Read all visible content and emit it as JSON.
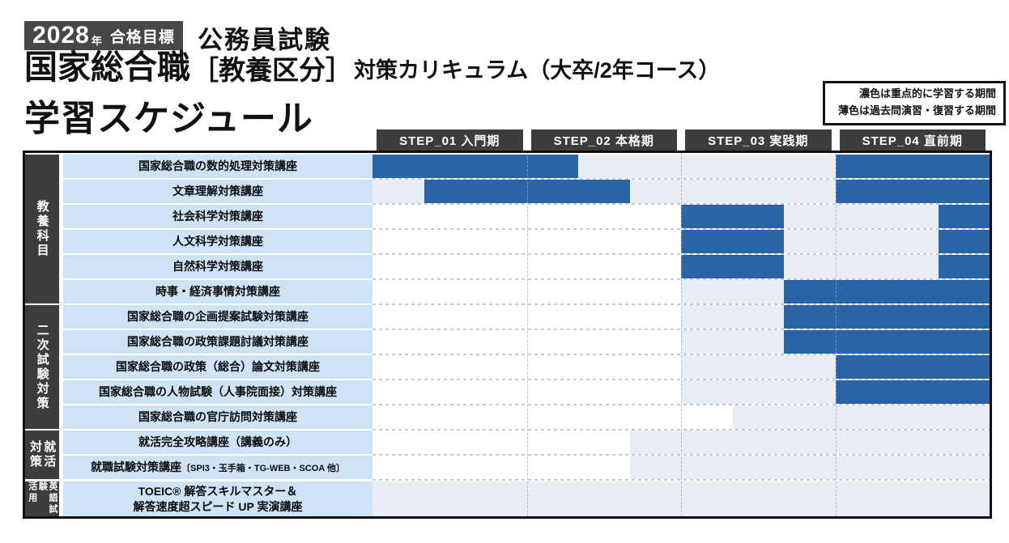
{
  "header": {
    "badge_year": "2028",
    "badge_year_unit": "年",
    "badge_goal": "合格目標",
    "exam_category": "公務員試験",
    "title_main": "国家総合職",
    "title_bracket": "［教養区分］",
    "title_tail": "対策カリキュラム（大卒/2年コース）",
    "subtitle": "学習スケジュール"
  },
  "legend": {
    "dark_note": "濃色は重点的に学習する期間",
    "light_note": "薄色は過去問演習・復習する期間"
  },
  "colors": {
    "dark_bar": "#2b64a4",
    "light_bar": "#e8edf4",
    "row_label_bg": "#cfe3f7",
    "frame": "#3d3d3d",
    "border": "#0d0d0d"
  },
  "chart_data": {
    "type": "table",
    "title": "国家総合職［教養区分］対策カリキュラム（大卒/2年コース）学習スケジュール",
    "x_axis": "24 months total, 4 steps × 6 months",
    "unit_months": 24,
    "legend_position": "top-right",
    "shade_meaning": {
      "dark": "重点的に学習する期間",
      "light": "過去問演習・復習する期間"
    },
    "steps": [
      "STEP_01 入門期",
      "STEP_02 本格期",
      "STEP_03 実践期",
      "STEP_04 直前期"
    ],
    "groups": [
      {
        "lines": [
          "教養科目"
        ],
        "first_row": 0,
        "last_row": 5
      },
      {
        "lines": [
          "二次試験対策"
        ],
        "first_row": 6,
        "last_row": 10
      },
      {
        "lines": [
          "就活",
          "対策"
        ],
        "first_row": 11,
        "last_row": 12
      },
      {
        "lines": [
          "英語試験",
          "活用"
        ],
        "first_row": 13,
        "last_row": 13
      }
    ],
    "rows": [
      {
        "label": "国家総合職の数的処理対策講座",
        "segments": [
          {
            "from": 0,
            "to": 8,
            "shade": "dark"
          },
          {
            "from": 8,
            "to": 18,
            "shade": "light"
          },
          {
            "from": 18,
            "to": 24,
            "shade": "dark"
          }
        ]
      },
      {
        "label": "文章理解対策講座",
        "segments": [
          {
            "from": 0,
            "to": 2,
            "shade": "light"
          },
          {
            "from": 2,
            "to": 10,
            "shade": "dark"
          },
          {
            "from": 10,
            "to": 18,
            "shade": "light"
          },
          {
            "from": 18,
            "to": 24,
            "shade": "dark"
          }
        ]
      },
      {
        "label": "社会科学対策講座",
        "segments": [
          {
            "from": 12,
            "to": 16,
            "shade": "dark"
          },
          {
            "from": 16,
            "to": 22,
            "shade": "light"
          },
          {
            "from": 22,
            "to": 24,
            "shade": "dark"
          }
        ]
      },
      {
        "label": "人文科学対策講座",
        "segments": [
          {
            "from": 12,
            "to": 16,
            "shade": "dark"
          },
          {
            "from": 16,
            "to": 22,
            "shade": "light"
          },
          {
            "from": 22,
            "to": 24,
            "shade": "dark"
          }
        ]
      },
      {
        "label": "自然科学対策講座",
        "segments": [
          {
            "from": 12,
            "to": 16,
            "shade": "dark"
          },
          {
            "from": 16,
            "to": 22,
            "shade": "light"
          },
          {
            "from": 22,
            "to": 24,
            "shade": "dark"
          }
        ]
      },
      {
        "label": "時事・経済事情対策講座",
        "segments": [
          {
            "from": 12,
            "to": 16,
            "shade": "light"
          },
          {
            "from": 16,
            "to": 24,
            "shade": "dark"
          }
        ]
      },
      {
        "label": "国家総合職の企画提案試験対策講座",
        "segments": [
          {
            "from": 12,
            "to": 16,
            "shade": "light"
          },
          {
            "from": 16,
            "to": 24,
            "shade": "dark"
          }
        ]
      },
      {
        "label": "国家総合職の政策課題討議対策講座",
        "segments": [
          {
            "from": 12,
            "to": 16,
            "shade": "light"
          },
          {
            "from": 16,
            "to": 24,
            "shade": "dark"
          }
        ]
      },
      {
        "label": "国家総合職の政策（総合）論文対策講座",
        "segments": [
          {
            "from": 12,
            "to": 18,
            "shade": "light"
          },
          {
            "from": 18,
            "to": 24,
            "shade": "dark"
          }
        ]
      },
      {
        "label": "国家総合職の人物試験（人事院面接）対策講座",
        "segments": [
          {
            "from": 12,
            "to": 18,
            "shade": "light"
          },
          {
            "from": 18,
            "to": 24,
            "shade": "dark"
          }
        ]
      },
      {
        "label": "国家総合職の官庁訪問対策講座",
        "segments": [
          {
            "from": 14,
            "to": 24,
            "shade": "light"
          }
        ]
      },
      {
        "label": "就活完全攻略講座（講義のみ）",
        "segments": [
          {
            "from": 10,
            "to": 24,
            "shade": "light"
          }
        ]
      },
      {
        "label": "就職試験対策講座",
        "label_small": "〔SPI3・玉手箱・TG-WEB・SCOA 他〕",
        "segments": [
          {
            "from": 10,
            "to": 24,
            "shade": "light"
          }
        ]
      },
      {
        "label_lines": [
          "TOEIC® 解答スキルマスター＆",
          "解答速度超スピード UP 実演講座"
        ],
        "segments": [
          {
            "from": 0,
            "to": 24,
            "shade": "light"
          }
        ]
      }
    ]
  }
}
